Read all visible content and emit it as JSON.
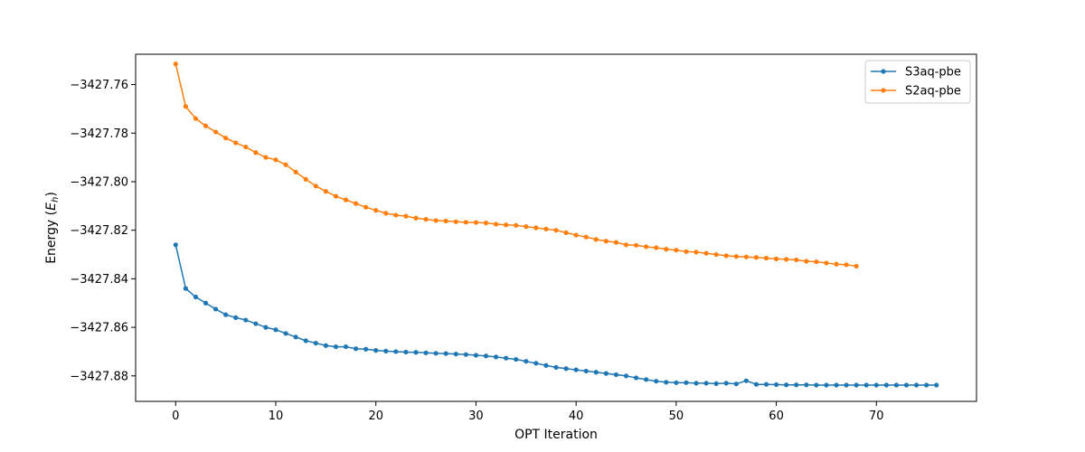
{
  "chart_data": {
    "type": "line",
    "title": "",
    "xlabel": "OPT Iteration",
    "ylabel": "Energy (E_h)",
    "ylabel_text": "Energy (",
    "ylabel_sym": "E",
    "ylabel_sub": "h",
    "ylabel_close": ")",
    "xlim": [
      -4,
      80
    ],
    "ylim": [
      -3427.8905,
      -3427.7475
    ],
    "xticks": [
      0,
      10,
      20,
      30,
      40,
      50,
      60,
      70
    ],
    "yticks": [
      -3427.76,
      -3427.78,
      -3427.8,
      -3427.82,
      -3427.84,
      -3427.86,
      -3427.88
    ],
    "grid": false,
    "legend_position": "top-right",
    "series": [
      {
        "name": "S3aq-pbe",
        "color": "#1f77b4",
        "x": [
          0,
          1,
          2,
          3,
          4,
          5,
          6,
          7,
          8,
          9,
          10,
          11,
          12,
          13,
          14,
          15,
          16,
          17,
          18,
          19,
          20,
          21,
          22,
          23,
          24,
          25,
          26,
          27,
          28,
          29,
          30,
          31,
          32,
          33,
          34,
          35,
          36,
          37,
          38,
          39,
          40,
          41,
          42,
          43,
          44,
          45,
          46,
          47,
          48,
          49,
          50,
          51,
          52,
          53,
          54,
          55,
          56,
          57,
          58,
          59,
          60,
          61,
          62,
          63,
          64,
          65,
          66,
          67,
          68,
          69,
          70,
          71,
          72,
          73,
          74,
          75,
          76
        ],
        "y": [
          -3427.826,
          -3427.844,
          -3427.8475,
          -3427.85,
          -3427.8525,
          -3427.8548,
          -3427.856,
          -3427.857,
          -3427.8585,
          -3427.86,
          -3427.861,
          -3427.8625,
          -3427.864,
          -3427.8655,
          -3427.8665,
          -3427.8675,
          -3427.868,
          -3427.868,
          -3427.8688,
          -3427.869,
          -3427.8695,
          -3427.8698,
          -3427.87,
          -3427.8702,
          -3427.8703,
          -3427.8705,
          -3427.8707,
          -3427.8708,
          -3427.871,
          -3427.8712,
          -3427.8715,
          -3427.8718,
          -3427.8722,
          -3427.8727,
          -3427.8732,
          -3427.874,
          -3427.8748,
          -3427.8757,
          -3427.8765,
          -3427.877,
          -3427.8775,
          -3427.878,
          -3427.8785,
          -3427.879,
          -3427.8795,
          -3427.88,
          -3427.8808,
          -3427.8815,
          -3427.8822,
          -3427.8826,
          -3427.8828,
          -3427.8828,
          -3427.883,
          -3427.883,
          -3427.8832,
          -3427.883,
          -3427.8833,
          -3427.882,
          -3427.8835,
          -3427.8835,
          -3427.8836,
          -3427.8837,
          -3427.8837,
          -3427.8837,
          -3427.8838,
          -3427.8838,
          -3427.8838,
          -3427.8838,
          -3427.8838,
          -3427.8838,
          -3427.8838,
          -3427.8838,
          -3427.8838,
          -3427.8838,
          -3427.8838,
          -3427.8838,
          -3427.8838
        ]
      },
      {
        "name": "S2aq-pbe",
        "color": "#ff7f0e",
        "x": [
          0,
          1,
          2,
          3,
          4,
          5,
          6,
          7,
          8,
          9,
          10,
          11,
          12,
          13,
          14,
          15,
          16,
          17,
          18,
          19,
          20,
          21,
          22,
          23,
          24,
          25,
          26,
          27,
          28,
          29,
          30,
          31,
          32,
          33,
          34,
          35,
          36,
          37,
          38,
          39,
          40,
          41,
          42,
          43,
          44,
          45,
          46,
          47,
          48,
          49,
          50,
          51,
          52,
          53,
          54,
          55,
          56,
          57,
          58,
          59,
          60,
          61,
          62,
          63,
          64,
          65,
          66,
          67,
          68
        ],
        "y": [
          -3427.7515,
          -3427.769,
          -3427.774,
          -3427.777,
          -3427.7795,
          -3427.782,
          -3427.784,
          -3427.7857,
          -3427.788,
          -3427.79,
          -3427.791,
          -3427.793,
          -3427.796,
          -3427.799,
          -3427.8018,
          -3427.804,
          -3427.806,
          -3427.8075,
          -3427.809,
          -3427.8105,
          -3427.8118,
          -3427.813,
          -3427.8138,
          -3427.8142,
          -3427.815,
          -3427.8155,
          -3427.816,
          -3427.8162,
          -3427.8165,
          -3427.8167,
          -3427.8168,
          -3427.817,
          -3427.8175,
          -3427.8178,
          -3427.818,
          -3427.8185,
          -3427.819,
          -3427.8195,
          -3427.82,
          -3427.821,
          -3427.822,
          -3427.8228,
          -3427.8238,
          -3427.8245,
          -3427.825,
          -3427.826,
          -3427.8262,
          -3427.8268,
          -3427.8272,
          -3427.8278,
          -3427.8282,
          -3427.8288,
          -3427.829,
          -3427.8295,
          -3427.83,
          -3427.8305,
          -3427.8308,
          -3427.831,
          -3427.8312,
          -3427.8315,
          -3427.8318,
          -3427.832,
          -3427.8322,
          -3427.8328,
          -3427.833,
          -3427.8335,
          -3427.834,
          -3427.8342,
          -3427.8348
        ]
      }
    ]
  }
}
